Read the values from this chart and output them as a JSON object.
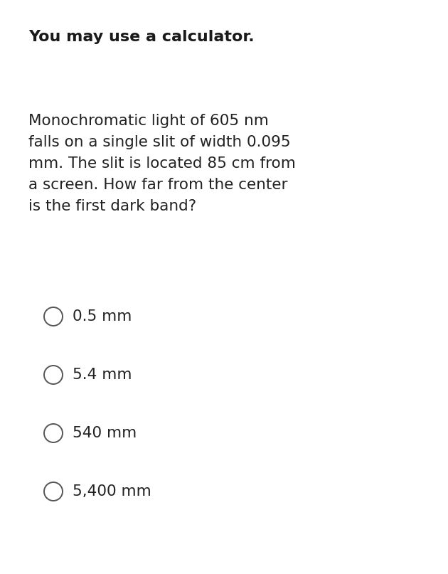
{
  "background_color": "#ffffff",
  "title_text": "You may use a calculator.",
  "title_fontsize": 16,
  "title_fontweight": "bold",
  "title_color": "#1a1a1a",
  "question_lines": [
    "Monochromatic light of 605 nm",
    "falls on a single slit of width 0.095",
    "mm. The slit is located 85 cm from",
    "a screen. How far from the center",
    "is the first dark band?"
  ],
  "question_fontsize": 15.5,
  "question_color": "#222222",
  "options": [
    "0.5 mm",
    "5.4 mm",
    "540 mm",
    "5,400 mm"
  ],
  "option_fontsize": 15.5,
  "option_color": "#222222",
  "circle_edgecolor": "#555555",
  "circle_linewidth": 1.4
}
